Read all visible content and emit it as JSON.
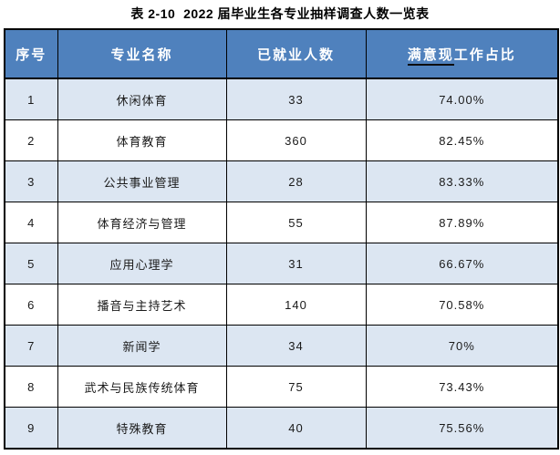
{
  "title": "表 2-10  2022 届毕业生各专业抽样调查人数一览表",
  "table": {
    "headers": {
      "index": "序号",
      "major": "专业名称",
      "employed": "已就业人数",
      "satisfied_underlined_part": "满意现",
      "satisfied_rest_part": "工作占比"
    },
    "rows": [
      {
        "index": "1",
        "major": "休闲体育",
        "employed": "33",
        "satisfied": "74.00%"
      },
      {
        "index": "2",
        "major": "体育教育",
        "employed": "360",
        "satisfied": "82.45%"
      },
      {
        "index": "3",
        "major": "公共事业管理",
        "employed": "28",
        "satisfied": "83.33%"
      },
      {
        "index": "4",
        "major": "体育经济与管理",
        "employed": "55",
        "satisfied": "87.89%"
      },
      {
        "index": "5",
        "major": "应用心理学",
        "employed": "31",
        "satisfied": "66.67%"
      },
      {
        "index": "6",
        "major": "播音与主持艺术",
        "employed": "140",
        "satisfied": "70.58%"
      },
      {
        "index": "7",
        "major": "新闻学",
        "employed": "34",
        "satisfied": "70%"
      },
      {
        "index": "8",
        "major": "武术与民族传统体育",
        "employed": "75",
        "satisfied": "73.43%"
      },
      {
        "index": "9",
        "major": "特殊教育",
        "employed": "40",
        "satisfied": "75.56%"
      }
    ]
  },
  "colors": {
    "header_bg": "#4f81bd",
    "header_text": "#ffffff",
    "band_row_bg": "#dce6f2",
    "plain_row_bg": "#ffffff",
    "border": "#000000",
    "body_text": "#1a1a1a"
  }
}
